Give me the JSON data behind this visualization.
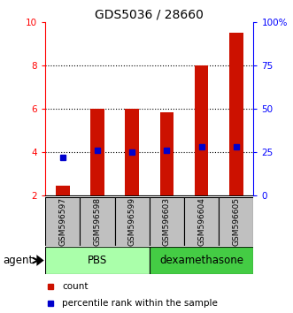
{
  "title": "GDS5036 / 28660",
  "samples": [
    "GSM596597",
    "GSM596598",
    "GSM596599",
    "GSM596603",
    "GSM596604",
    "GSM596605"
  ],
  "counts": [
    2.45,
    6.0,
    6.0,
    5.85,
    8.0,
    9.5
  ],
  "percentile_ranks_pct": [
    22,
    26,
    25,
    26,
    28,
    28
  ],
  "ylim_left": [
    2,
    10
  ],
  "ylim_right": [
    0,
    100
  ],
  "yticks_left": [
    2,
    4,
    6,
    8,
    10
  ],
  "yticks_right": [
    0,
    25,
    50,
    75,
    100
  ],
  "ytick_labels_right": [
    "0",
    "25",
    "50",
    "75",
    "100%"
  ],
  "groups": [
    {
      "label": "PBS",
      "samples": [
        0,
        1,
        2
      ],
      "color": "#aaffaa"
    },
    {
      "label": "dexamethasone",
      "samples": [
        3,
        4,
        5
      ],
      "color": "#44cc44"
    }
  ],
  "bar_color": "#cc1100",
  "dot_color": "#0000cc",
  "bar_width": 0.4,
  "label_area_color": "#c0c0c0",
  "agent_label": "agent",
  "legend_count_label": "count",
  "legend_percentile_label": "percentile rank within the sample",
  "title_fontsize": 10,
  "tick_fontsize": 7.5,
  "label_fontsize": 8.5,
  "sample_fontsize": 6.5
}
